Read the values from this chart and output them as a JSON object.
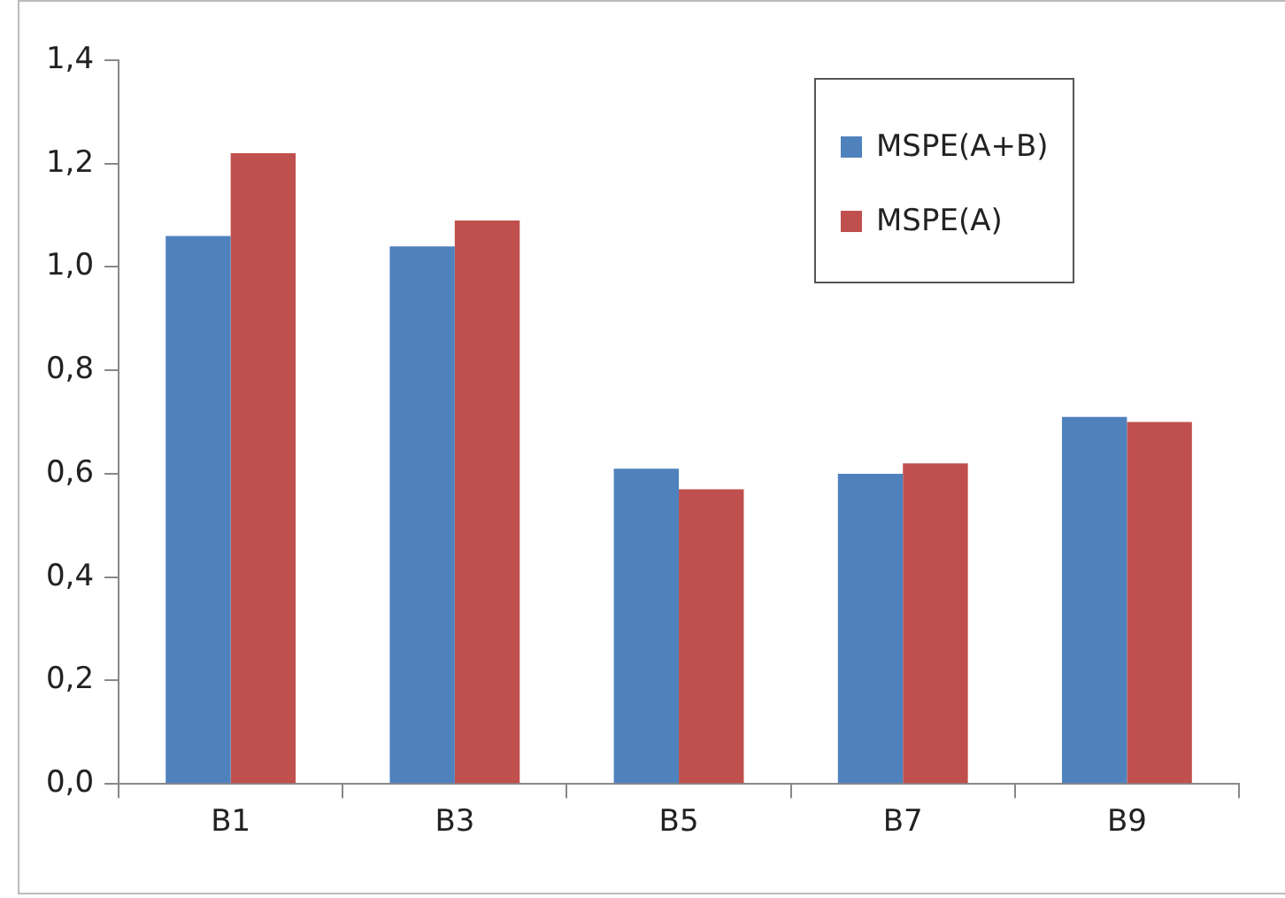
{
  "chart_data": {
    "type": "bar",
    "categories": [
      "B1",
      "B3",
      "B5",
      "B7",
      "B9"
    ],
    "series": [
      {
        "name": "MSPE(A+B)",
        "color": "#4f81bd",
        "values": [
          1.06,
          1.04,
          0.61,
          0.6,
          0.71
        ]
      },
      {
        "name": "MSPE(A)",
        "color": "#c0504d",
        "values": [
          1.22,
          1.09,
          0.57,
          0.62,
          0.7
        ]
      }
    ],
    "ylim": [
      0,
      1.4
    ],
    "yticks": [
      {
        "value": 0,
        "label": "0,0"
      },
      {
        "value": 0.2,
        "label": "0,2"
      },
      {
        "value": 0.4,
        "label": "0,4"
      },
      {
        "value": 0.6,
        "label": "0,6"
      },
      {
        "value": 0.8,
        "label": "0,8"
      },
      {
        "value": 1,
        "label": "1,0"
      },
      {
        "value": 1.2,
        "label": "1,2"
      },
      {
        "value": 1.4,
        "label": "1,4"
      }
    ],
    "grid": false,
    "legend": "top right"
  }
}
